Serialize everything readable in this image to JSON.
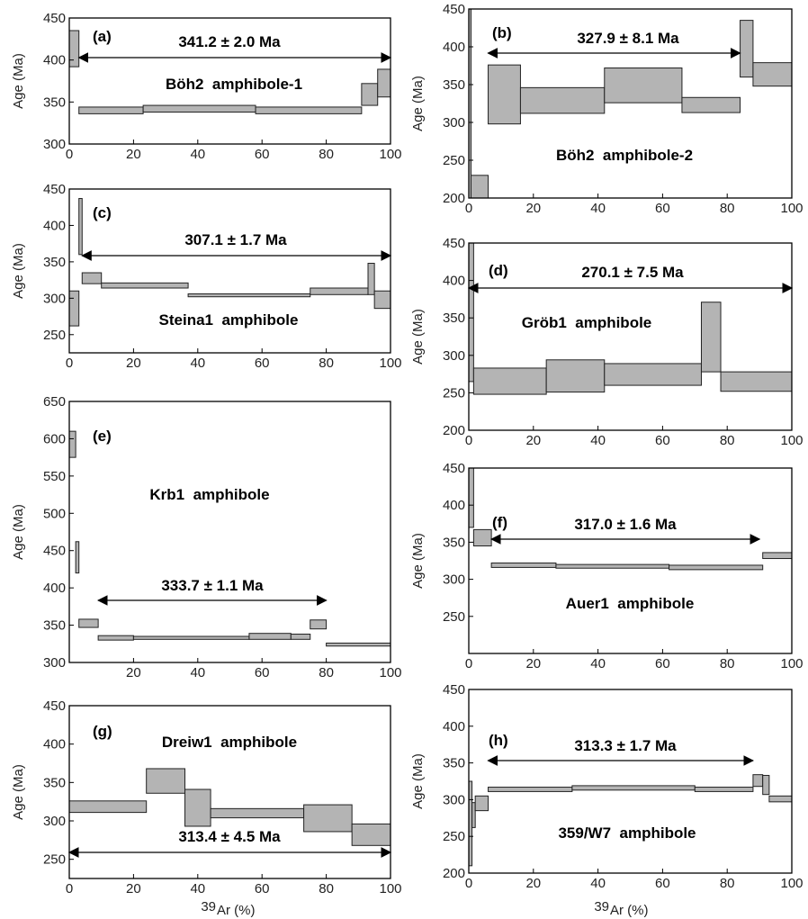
{
  "x_axis_label_sup": "39",
  "x_axis_label_main": "Ar (%)",
  "chart_data": [
    {
      "type": "bar",
      "panel": "(a)",
      "sample": "Böh2  amphibole-1",
      "plateau_label": "341.2 ± 2.0 Ma",
      "ylabel": "Age (Ma)",
      "xlim": [
        0,
        100
      ],
      "ylim": [
        300,
        450
      ],
      "xticks": [
        0,
        20,
        40,
        60,
        80,
        100
      ],
      "yticks": [
        300,
        350,
        400,
        450
      ],
      "plateau_range": [
        3,
        100
      ],
      "steps": [
        {
          "x0": 0,
          "x1": 3,
          "y0": 392,
          "y1": 435
        },
        {
          "x0": 3,
          "x1": 23,
          "y0": 336,
          "y1": 344
        },
        {
          "x0": 23,
          "x1": 58,
          "y0": 338,
          "y1": 346
        },
        {
          "x0": 58,
          "x1": 91,
          "y0": 336,
          "y1": 344
        },
        {
          "x0": 91,
          "x1": 96,
          "y0": 346,
          "y1": 372
        },
        {
          "x0": 96,
          "x1": 100,
          "y0": 356,
          "y1": 389
        }
      ]
    },
    {
      "type": "bar",
      "panel": "(b)",
      "sample": "Böh2  amphibole-2",
      "plateau_label": "327.9 ± 8.1 Ma",
      "ylabel": "Age (Ma)",
      "xlim": [
        0,
        100
      ],
      "ylim": [
        200,
        450
      ],
      "xticks": [
        0,
        20,
        40,
        60,
        80,
        100
      ],
      "yticks": [
        200,
        250,
        300,
        350,
        400,
        450
      ],
      "plateau_range": [
        6,
        84
      ],
      "steps": [
        {
          "x0": 0,
          "x1": 0.7,
          "y0": 200,
          "y1": 450
        },
        {
          "x0": 0.7,
          "x1": 6,
          "y0": 200,
          "y1": 230
        },
        {
          "x0": 6,
          "x1": 16,
          "y0": 298,
          "y1": 376
        },
        {
          "x0": 16,
          "x1": 42,
          "y0": 312,
          "y1": 346
        },
        {
          "x0": 42,
          "x1": 66,
          "y0": 326,
          "y1": 372
        },
        {
          "x0": 66,
          "x1": 84,
          "y0": 313,
          "y1": 333
        },
        {
          "x0": 84,
          "x1": 88,
          "y0": 360,
          "y1": 435
        },
        {
          "x0": 88,
          "x1": 100,
          "y0": 348,
          "y1": 379
        }
      ]
    },
    {
      "type": "bar",
      "panel": "(c)",
      "sample": "Steina1  amphibole",
      "plateau_label": "307.1 ± 1.7 Ma",
      "ylabel": "Age (Ma)",
      "xlim": [
        0,
        100
      ],
      "ylim": [
        225,
        450
      ],
      "xticks": [
        0,
        20,
        40,
        60,
        80,
        100
      ],
      "yticks": [
        250,
        300,
        350,
        400,
        450
      ],
      "plateau_range": [
        4,
        100
      ],
      "steps": [
        {
          "x0": 0,
          "x1": 3,
          "y0": 262,
          "y1": 310
        },
        {
          "x0": 3,
          "x1": 4,
          "y0": 360,
          "y1": 437
        },
        {
          "x0": 4,
          "x1": 10,
          "y0": 320,
          "y1": 335
        },
        {
          "x0": 10,
          "x1": 37,
          "y0": 314,
          "y1": 321
        },
        {
          "x0": 37,
          "x1": 75,
          "y0": 302,
          "y1": 306
        },
        {
          "x0": 75,
          "x1": 93,
          "y0": 305,
          "y1": 314
        },
        {
          "x0": 93,
          "x1": 95,
          "y0": 305,
          "y1": 348
        },
        {
          "x0": 95,
          "x1": 100,
          "y0": 286,
          "y1": 310
        }
      ]
    },
    {
      "type": "bar",
      "panel": "(d)",
      "sample": "Gröb1  amphibole",
      "plateau_label": "270.1 ± 7.5 Ma",
      "ylabel": "Age (Ma)",
      "xlim": [
        0,
        100
      ],
      "ylim": [
        200,
        450
      ],
      "xticks": [
        0,
        20,
        40,
        60,
        80,
        100
      ],
      "yticks": [
        200,
        250,
        300,
        350,
        400,
        450
      ],
      "plateau_range": [
        0,
        100
      ],
      "steps": [
        {
          "x0": 0,
          "x1": 1.5,
          "y0": 265,
          "y1": 450
        },
        {
          "x0": 1.5,
          "x1": 24,
          "y0": 248,
          "y1": 283
        },
        {
          "x0": 24,
          "x1": 42,
          "y0": 251,
          "y1": 294
        },
        {
          "x0": 42,
          "x1": 72,
          "y0": 260,
          "y1": 289
        },
        {
          "x0": 72,
          "x1": 78,
          "y0": 278,
          "y1": 371
        },
        {
          "x0": 78,
          "x1": 100,
          "y0": 252,
          "y1": 278
        }
      ]
    },
    {
      "type": "bar",
      "panel": "(e)",
      "sample": "Krb1  amphibole",
      "plateau_label": "333.7 ± 1.1 Ma",
      "ylabel": "Age (Ma)",
      "xlim": [
        0,
        100
      ],
      "ylim": [
        300,
        650
      ],
      "xticks": [
        20,
        40,
        60,
        80,
        100
      ],
      "yticks": [
        300,
        350,
        400,
        450,
        500,
        550,
        600,
        650
      ],
      "plateau_range": [
        9,
        80
      ],
      "steps": [
        {
          "x0": 0,
          "x1": 2,
          "y0": 575,
          "y1": 610
        },
        {
          "x0": 2,
          "x1": 3,
          "y0": 420,
          "y1": 462
        },
        {
          "x0": 3,
          "x1": 9,
          "y0": 347,
          "y1": 358
        },
        {
          "x0": 9,
          "x1": 20,
          "y0": 330,
          "y1": 336
        },
        {
          "x0": 20,
          "x1": 56,
          "y0": 331,
          "y1": 335
        },
        {
          "x0": 56,
          "x1": 69,
          "y0": 331,
          "y1": 339
        },
        {
          "x0": 69,
          "x1": 75,
          "y0": 331,
          "y1": 338
        },
        {
          "x0": 75,
          "x1": 80,
          "y0": 345,
          "y1": 357
        },
        {
          "x0": 80,
          "x1": 100,
          "y0": 322,
          "y1": 326
        }
      ]
    },
    {
      "type": "bar",
      "panel": "(f)",
      "sample": "Auer1  amphibole",
      "plateau_label": "317.0 ± 1.6 Ma",
      "ylabel": "Age (Ma)",
      "xlim": [
        0,
        100
      ],
      "ylim": [
        200,
        450
      ],
      "xticks": [
        0,
        20,
        40,
        60,
        80,
        100
      ],
      "yticks": [
        250,
        300,
        350,
        400,
        450
      ],
      "plateau_range": [
        7,
        90
      ],
      "steps": [
        {
          "x0": 0,
          "x1": 1.5,
          "y0": 370,
          "y1": 450
        },
        {
          "x0": 1.5,
          "x1": 7,
          "y0": 345,
          "y1": 367
        },
        {
          "x0": 7,
          "x1": 27,
          "y0": 316,
          "y1": 322
        },
        {
          "x0": 27,
          "x1": 62,
          "y0": 315,
          "y1": 320
        },
        {
          "x0": 62,
          "x1": 91,
          "y0": 313,
          "y1": 319
        },
        {
          "x0": 91,
          "x1": 100,
          "y0": 328,
          "y1": 336
        }
      ]
    },
    {
      "type": "bar",
      "panel": "(g)",
      "sample": "Dreiw1  amphibole",
      "plateau_label": "313.4 ± 4.5 Ma",
      "ylabel": "Age (Ma)",
      "xlim": [
        0,
        100
      ],
      "ylim": [
        225,
        450
      ],
      "xticks": [
        0,
        20,
        40,
        60,
        80,
        100
      ],
      "yticks": [
        250,
        300,
        350,
        400,
        450
      ],
      "plateau_range": [
        0,
        100
      ],
      "steps": [
        {
          "x0": 0,
          "x1": 24,
          "y0": 311,
          "y1": 326
        },
        {
          "x0": 24,
          "x1": 36,
          "y0": 336,
          "y1": 368
        },
        {
          "x0": 36,
          "x1": 44,
          "y0": 293,
          "y1": 341
        },
        {
          "x0": 44,
          "x1": 73,
          "y0": 304,
          "y1": 316
        },
        {
          "x0": 73,
          "x1": 88,
          "y0": 286,
          "y1": 321
        },
        {
          "x0": 88,
          "x1": 100,
          "y0": 268,
          "y1": 296
        }
      ]
    },
    {
      "type": "bar",
      "panel": "(h)",
      "sample": "359/W7  amphibole",
      "plateau_label": "313.3 ± 1.7 Ma",
      "ylabel": "Age (Ma)",
      "xlim": [
        0,
        100
      ],
      "ylim": [
        200,
        450
      ],
      "xticks": [
        0,
        20,
        40,
        60,
        80,
        100
      ],
      "yticks": [
        200,
        250,
        300,
        350,
        400,
        450
      ],
      "plateau_range": [
        6,
        88
      ],
      "steps": [
        {
          "x0": 0,
          "x1": 1,
          "y0": 210,
          "y1": 325
        },
        {
          "x0": 1,
          "x1": 2,
          "y0": 262,
          "y1": 296
        },
        {
          "x0": 2,
          "x1": 6,
          "y0": 285,
          "y1": 305
        },
        {
          "x0": 6,
          "x1": 32,
          "y0": 311,
          "y1": 317
        },
        {
          "x0": 32,
          "x1": 70,
          "y0": 313,
          "y1": 319
        },
        {
          "x0": 70,
          "x1": 88,
          "y0": 311,
          "y1": 317
        },
        {
          "x0": 88,
          "x1": 91,
          "y0": 318,
          "y1": 334
        },
        {
          "x0": 91,
          "x1": 93,
          "y0": 307,
          "y1": 333
        },
        {
          "x0": 93,
          "x1": 100,
          "y0": 297,
          "y1": 305
        }
      ]
    }
  ]
}
